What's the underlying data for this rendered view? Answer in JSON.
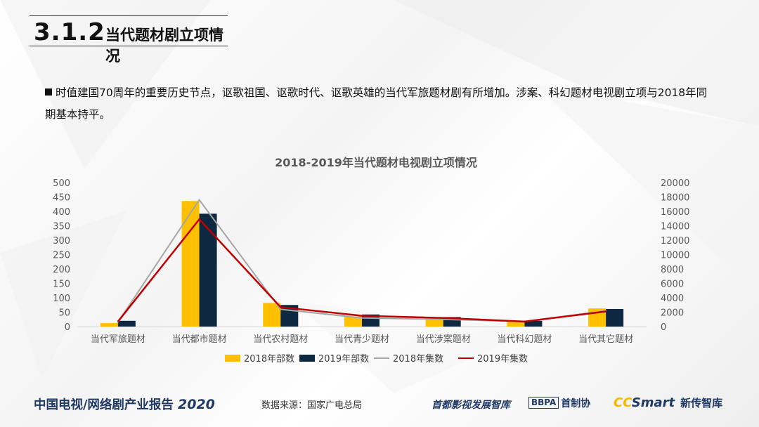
{
  "header": {
    "section_no": "3.1.2",
    "title": "当代题材剧立项情况"
  },
  "intro": {
    "text": "时值建国70周年的重要历史节点，讴歌祖国、讴歌时代、讴歌英雄的当代军旅题材剧有所增加。涉案、科幻题材电视剧立项与2018年同期基本持平。"
  },
  "chart_data": {
    "type": "bar",
    "title": "2018-2019年当代题材电视剧立项情况",
    "categories": [
      "当代军旅题材",
      "当代都市题材",
      "当代农村题材",
      "当代青少题材",
      "当代涉案题材",
      "当代科幻题材",
      "当代其它题材"
    ],
    "series": [
      {
        "name": "2018年部数",
        "type": "bar",
        "axis": "left",
        "color": "#FFC000",
        "values": [
          12,
          436,
          82,
          35,
          28,
          18,
          63
        ]
      },
      {
        "name": "2019年部数",
        "type": "bar",
        "axis": "left",
        "color": "#0E2841",
        "values": [
          20,
          392,
          75,
          42,
          33,
          20,
          61
        ]
      },
      {
        "name": "2018年集数",
        "type": "line",
        "axis": "right",
        "color": "#A6A6A6",
        "values": [
          600,
          17600,
          2400,
          1200,
          1000,
          700,
          2200
        ]
      },
      {
        "name": "2019年集数",
        "type": "line",
        "axis": "right",
        "color": "#C00000",
        "values": [
          700,
          14900,
          2700,
          1500,
          1200,
          700,
          2100
        ]
      }
    ],
    "y_left": {
      "min": 0,
      "max": 500,
      "step": 50
    },
    "y_right": {
      "min": 0,
      "max": 20000,
      "step": 2000
    },
    "legend_position": "bottom",
    "grid": false
  },
  "footer": {
    "report_title": "中国电视/网络剧产业报告",
    "report_year": "2020",
    "source": "数据来源：国家广电总局",
    "logo1": "首都影视发展智库",
    "logo2_box": "BBPA",
    "logo2_text": "首制协",
    "logo3_cc": "CC",
    "logo3_smart": "Smart",
    "logo3_cn": "新传智库"
  }
}
